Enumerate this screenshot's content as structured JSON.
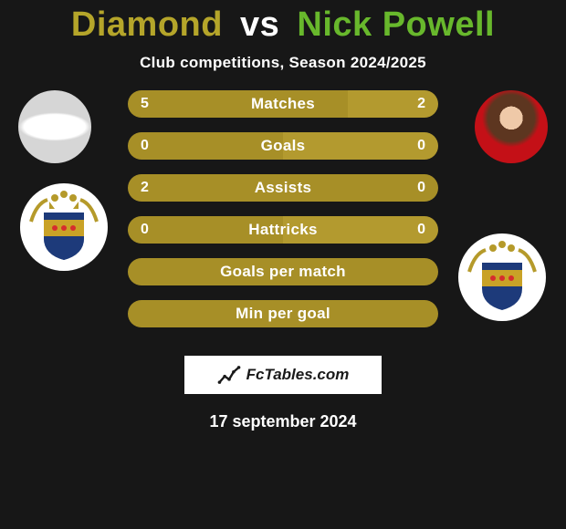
{
  "colors": {
    "background": "#171717",
    "accent_gold": "#a78f27",
    "accent_gold_right": "#b39a2f",
    "title_player1": "#b5a52a",
    "title_vs": "#ffffff",
    "title_player2": "#68b82c",
    "text_white": "#ffffff",
    "attribution_bg": "#ffffff",
    "attribution_text": "#1a1a1a"
  },
  "title": {
    "player1": "Diamond",
    "vs": "vs",
    "player2": "Nick Powell",
    "fontsize": 38
  },
  "subtitle": "Club competitions, Season 2024/2025",
  "stats": [
    {
      "label": "Matches",
      "left_val": "5",
      "right_val": "2",
      "left_pct": 71,
      "right_pct": 29
    },
    {
      "label": "Goals",
      "left_val": "0",
      "right_val": "0",
      "left_pct": 50,
      "right_pct": 50
    },
    {
      "label": "Assists",
      "left_val": "2",
      "right_val": "0",
      "left_pct": 100,
      "right_pct": 0
    },
    {
      "label": "Hattricks",
      "left_val": "0",
      "right_val": "0",
      "left_pct": 50,
      "right_pct": 50
    },
    {
      "label": "Goals per match",
      "left_val": "",
      "right_val": "",
      "left_pct": 100,
      "right_pct": 0,
      "single": true
    },
    {
      "label": "Min per goal",
      "left_val": "",
      "right_val": "",
      "left_pct": 100,
      "right_pct": 0,
      "single": true
    }
  ],
  "bar_style": {
    "height": 30,
    "radius": 15,
    "gap": 16,
    "label_fontsize": 17,
    "value_fontsize": 16
  },
  "attribution": {
    "text": "FcTables.com"
  },
  "date": "17 september 2024"
}
